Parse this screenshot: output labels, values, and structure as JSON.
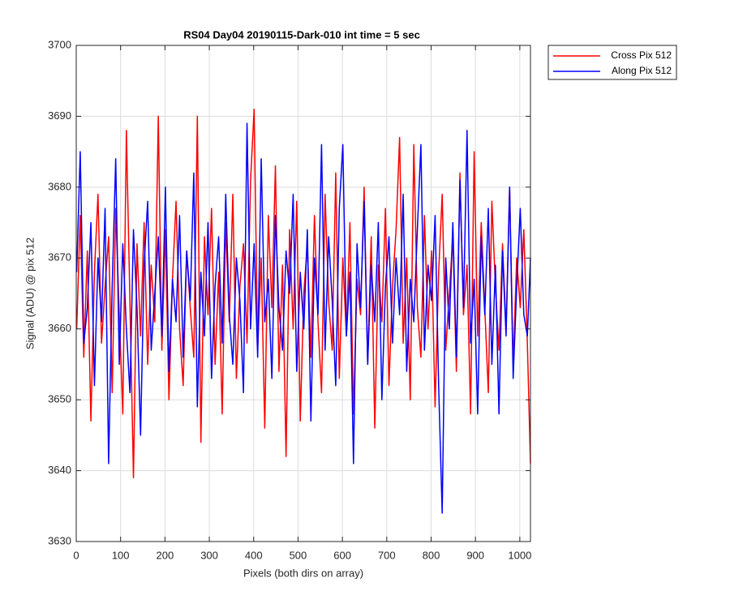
{
  "chart_data": {
    "type": "line",
    "title": "RS04 Day04 20190115-Dark-010 int time = 5 sec",
    "x_label": "Pixels (both dirs on array)",
    "y_label": "Signal (ADU) @ pix 512",
    "x": [
      1,
      9,
      17,
      25,
      33,
      41,
      49,
      57,
      65,
      73,
      81,
      89,
      97,
      105,
      113,
      121,
      129,
      137,
      145,
      153,
      161,
      169,
      177,
      185,
      193,
      201,
      209,
      217,
      225,
      233,
      241,
      249,
      257,
      265,
      273,
      281,
      289,
      297,
      305,
      313,
      321,
      329,
      337,
      345,
      353,
      361,
      369,
      377,
      385,
      393,
      401,
      409,
      417,
      425,
      433,
      441,
      449,
      457,
      465,
      473,
      481,
      489,
      497,
      505,
      513,
      521,
      529,
      537,
      545,
      553,
      561,
      569,
      577,
      585,
      593,
      601,
      609,
      617,
      625,
      633,
      641,
      649,
      657,
      665,
      673,
      681,
      689,
      697,
      705,
      713,
      721,
      729,
      737,
      745,
      753,
      761,
      769,
      777,
      785,
      793,
      801,
      809,
      817,
      825,
      833,
      841,
      849,
      857,
      865,
      873,
      881,
      889,
      897,
      905,
      913,
      921,
      929,
      937,
      945,
      953,
      961,
      969,
      977,
      985,
      993,
      1001,
      1009,
      1017,
      1024
    ],
    "series": [
      {
        "name": "Cross Pix 512",
        "color": "#ff0000",
        "values": [
          3660,
          3676,
          3656,
          3671,
          3647,
          3668,
          3679,
          3658,
          3666,
          3673,
          3651,
          3677,
          3662,
          3648,
          3688,
          3664,
          3639,
          3672,
          3659,
          3675,
          3655,
          3669,
          3661,
          3690,
          3657,
          3674,
          3650,
          3667,
          3678,
          3660,
          3652,
          3671,
          3663,
          3656,
          3690,
          3644,
          3673,
          3662,
          3677,
          3655,
          3668,
          3648,
          3675,
          3661,
          3679,
          3653,
          3666,
          3672,
          3658,
          3681,
          3691,
          3657,
          3670,
          3646,
          3676,
          3663,
          3683,
          3654,
          3669,
          3642,
          3674,
          3660,
          3678,
          3647,
          3665,
          3672,
          3656,
          3676,
          3661,
          3651,
          3679,
          3664,
          3657,
          3682,
          3653,
          3670,
          3659,
          3675,
          3648,
          3667,
          3662,
          3680,
          3655,
          3673,
          3646,
          3669,
          3661,
          3677,
          3652,
          3666,
          3674,
          3687,
          3658,
          3670,
          3650,
          3686,
          3663,
          3656,
          3676,
          3660,
          3671,
          3649,
          3668,
          3679,
          3657,
          3665,
          3673,
          3654,
          3682,
          3662,
          3669,
          3648,
          3685,
          3659,
          3675,
          3663,
          3651,
          3678,
          3666,
          3657,
          3672,
          3660,
          3680,
          3655,
          3670,
          3663,
          3674,
          3658,
          3641
        ]
      },
      {
        "name": "Along Pix 512",
        "color": "#0000ff",
        "values": [
          3668,
          3685,
          3658,
          3663,
          3675,
          3652,
          3670,
          3661,
          3677,
          3641,
          3666,
          3684,
          3655,
          3672,
          3660,
          3651,
          3674,
          3663,
          3645,
          3669,
          3678,
          3657,
          3665,
          3673,
          3659,
          3680,
          3654,
          3667,
          3661,
          3676,
          3656,
          3671,
          3664,
          3682,
          3649,
          3668,
          3659,
          3675,
          3653,
          3666,
          3673,
          3658,
          3679,
          3662,
          3655,
          3670,
          3664,
          3651,
          3689,
          3660,
          3672,
          3656,
          3684,
          3661,
          3667,
          3653,
          3676,
          3663,
          3657,
          3671,
          3665,
          3679,
          3654,
          3668,
          3660,
          3674,
          3647,
          3670,
          3662,
          3686,
          3657,
          3673,
          3664,
          3652,
          3677,
          3686,
          3659,
          3668,
          3641,
          3672,
          3663,
          3678,
          3655,
          3669,
          3661,
          3675,
          3650,
          3666,
          3673,
          3658,
          3670,
          3662,
          3679,
          3654,
          3667,
          3661,
          3674,
          3686,
          3657,
          3669,
          3664,
          3676,
          3652,
          3634,
          3670,
          3660,
          3675,
          3656,
          3681,
          3663,
          3688,
          3658,
          3667,
          3648,
          3673,
          3662,
          3677,
          3655,
          3669,
          3648,
          3671,
          3659,
          3680,
          3653,
          3666,
          3677,
          3662,
          3659,
          3670
        ]
      }
    ],
    "xlim": [
      0,
      1024
    ],
    "xticks": [
      0,
      100,
      200,
      300,
      400,
      500,
      600,
      700,
      800,
      900,
      1000
    ],
    "ylim": [
      3630,
      3700
    ],
    "yticks": [
      3630,
      3640,
      3650,
      3660,
      3670,
      3680,
      3690,
      3700
    ],
    "grid": true,
    "legend": "northeastoutside"
  }
}
